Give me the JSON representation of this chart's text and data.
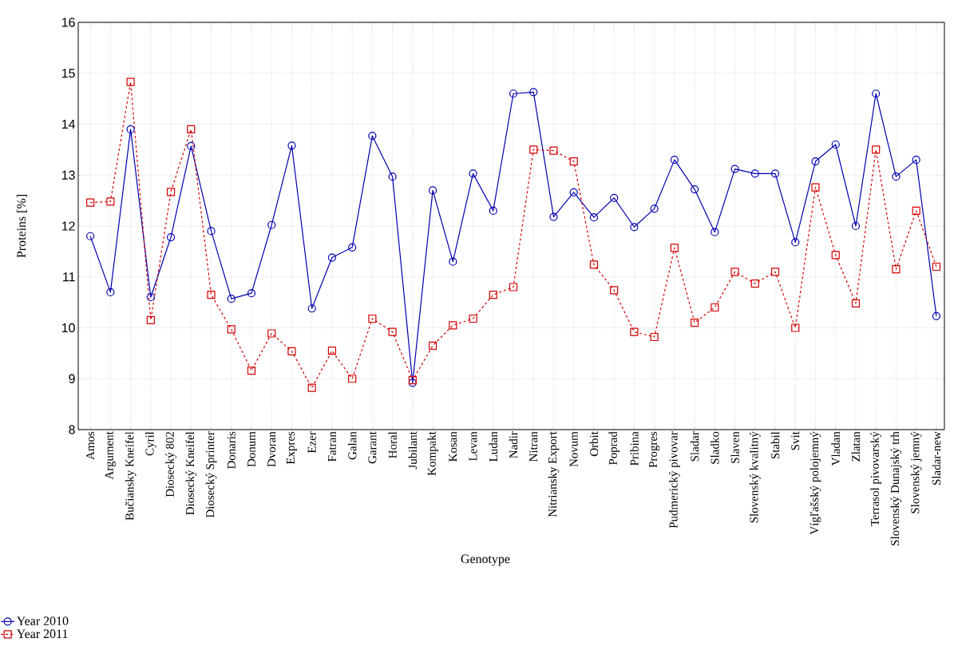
{
  "chart_data": {
    "type": "line",
    "xlabel": "Genotype",
    "ylabel": "Proteins [%]",
    "categories": [
      "Amos",
      "Argument",
      "Bučiansky Kneifel",
      "Cyril",
      "Diosecký 802",
      "Diosecký Kneifel",
      "Diosecký Sprinter",
      "Donaris",
      "Donum",
      "Dvoran",
      "Expres",
      "Ezer",
      "Fatran",
      "Galan",
      "Garant",
      "Horal",
      "Jubilant",
      "Kompakt",
      "Kosan",
      "Levan",
      "Ludan",
      "Nadir",
      "Nitran",
      "Nitriansky Export",
      "Novum",
      "Orbit",
      "Poprad",
      "Pribina",
      "Progres",
      "Pudmerický pivovar",
      "Sladar",
      "Sladko",
      "Slaven",
      "Slovenský kvalitný",
      "Stabil",
      "Svit",
      "Vígľašský polojemný",
      "Vladan",
      "Zlatan",
      "Terrasol pivovarský",
      "Slovenský Dunajský trh",
      "Slovenský jemný",
      "Sladar-new"
    ],
    "series": [
      {
        "name": "Year 2010",
        "color": "#0000b0",
        "marker": "circle",
        "line_style": "solid",
        "values": [
          11.8,
          10.7,
          13.9,
          10.6,
          11.78,
          13.57,
          11.9,
          10.57,
          10.68,
          12.02,
          13.58,
          10.38,
          11.38,
          11.58,
          13.77,
          12.97,
          8.92,
          12.7,
          11.3,
          13.03,
          12.3,
          14.6,
          14.63,
          12.18,
          12.66,
          12.17,
          12.55,
          11.98,
          12.34,
          13.3,
          12.72,
          11.88,
          13.12,
          13.03,
          13.03,
          11.68,
          13.27,
          13.6,
          12.0,
          14.6,
          12.97,
          13.3,
          10.23
        ]
      },
      {
        "name": "Year 2011",
        "color": "#d40000",
        "marker": "square",
        "line_style": "dashed",
        "values": [
          12.46,
          12.48,
          14.83,
          10.15,
          12.67,
          13.9,
          10.65,
          9.97,
          9.16,
          9.89,
          9.54,
          8.82,
          9.55,
          9.0,
          10.18,
          9.92,
          8.97,
          9.65,
          10.05,
          10.18,
          10.65,
          10.8,
          13.5,
          13.48,
          13.27,
          11.24,
          10.74,
          9.92,
          9.82,
          11.57,
          10.1,
          10.4,
          11.1,
          10.87,
          11.1,
          10.0,
          12.76,
          11.43,
          10.48,
          13.5,
          11.15,
          12.3,
          11.2
        ]
      }
    ],
    "ylim": [
      8,
      16
    ],
    "yticks": [
      8,
      9,
      10,
      11,
      12,
      13,
      14,
      15,
      16
    ],
    "grid": true,
    "legend": "bottom left"
  }
}
